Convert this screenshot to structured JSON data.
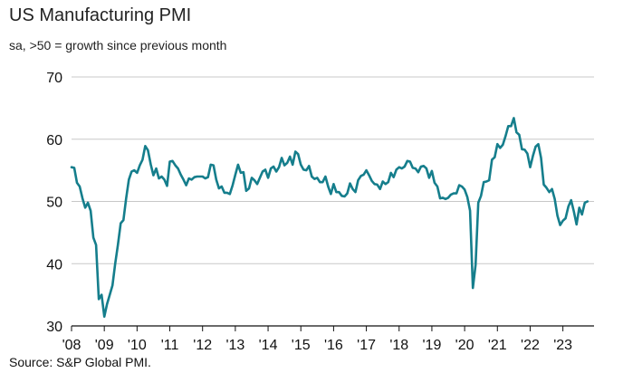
{
  "chart_data": {
    "type": "line",
    "title": "US Manufacturing PMI",
    "subtitle": "sa, >50 = growth since previous month",
    "source": "Source: S&P Global PMI.",
    "ylim": [
      30,
      70
    ],
    "yticks": [
      30,
      40,
      50,
      60,
      70
    ],
    "xlim": [
      2008,
      2023.95
    ],
    "xticks": [
      {
        "x": 2008,
        "label": "'08"
      },
      {
        "x": 2009,
        "label": "'09"
      },
      {
        "x": 2010,
        "label": "'10"
      },
      {
        "x": 2011,
        "label": "'11"
      },
      {
        "x": 2012,
        "label": "'12"
      },
      {
        "x": 2013,
        "label": "'13"
      },
      {
        "x": 2014,
        "label": "'14"
      },
      {
        "x": 2015,
        "label": "'15"
      },
      {
        "x": 2016,
        "label": "'16"
      },
      {
        "x": 2017,
        "label": "'17"
      },
      {
        "x": 2018,
        "label": "'18"
      },
      {
        "x": 2019,
        "label": "'19"
      },
      {
        "x": 2020,
        "label": "'20"
      },
      {
        "x": 2021,
        "label": "'21"
      },
      {
        "x": 2022,
        "label": "'22"
      },
      {
        "x": 2023,
        "label": "'23"
      }
    ],
    "grid": true,
    "series": [
      {
        "name": "US Manufacturing PMI",
        "color": "#157e8c",
        "start": 2008.0,
        "step": 0.0833333,
        "values": [
          55.5,
          55.4,
          53.0,
          52.4,
          50.5,
          49.0,
          49.8,
          48.5,
          44.2,
          43.0,
          34.3,
          35.0,
          31.5,
          33.5,
          35.0,
          36.5,
          40.0,
          43.0,
          46.5,
          47.0,
          50.5,
          53.5,
          54.8,
          55.0,
          54.6,
          55.8,
          56.7,
          58.9,
          58.2,
          56.0,
          54.2,
          55.3,
          53.7,
          54.0,
          53.5,
          52.5,
          56.4,
          56.5,
          55.8,
          55.3,
          54.3,
          53.5,
          52.6,
          53.7,
          53.5,
          53.9,
          54.0,
          54.0,
          54.0,
          53.7,
          53.9,
          55.9,
          55.8,
          53.5,
          52.1,
          52.4,
          51.4,
          51.4,
          51.2,
          52.6,
          54.3,
          55.9,
          54.6,
          54.7,
          51.7,
          52.1,
          53.8,
          53.4,
          52.8,
          53.8,
          54.8,
          55.1,
          53.8,
          55.3,
          55.6,
          54.8,
          55.5,
          57.0,
          55.8,
          56.2,
          57.2,
          55.9,
          58.0,
          57.6,
          55.9,
          55.1,
          55.0,
          55.7,
          54.0,
          53.6,
          53.8,
          53.1,
          53.1,
          54.0,
          52.4,
          51.2,
          52.8,
          51.5,
          51.5,
          50.9,
          50.8,
          51.3,
          52.9,
          52.0,
          51.5,
          53.4,
          54.1,
          54.3,
          55.0,
          54.2,
          53.3,
          52.8,
          52.7,
          52.0,
          53.2,
          52.8,
          53.1,
          54.6,
          53.9,
          55.1,
          55.5,
          55.3,
          55.6,
          56.5,
          56.4,
          55.4,
          55.3,
          54.7,
          55.6,
          55.7,
          55.3,
          53.8,
          54.9,
          53.0,
          52.4,
          50.5,
          50.6,
          50.4,
          50.6,
          51.1,
          51.3,
          51.3,
          52.6,
          52.4,
          51.9,
          50.7,
          48.5,
          36.1,
          39.8,
          49.8,
          50.9,
          53.1,
          53.2,
          53.4,
          56.7,
          57.1,
          59.2,
          58.6,
          59.1,
          60.5,
          62.1,
          62.1,
          63.4,
          61.1,
          60.7,
          58.4,
          58.3,
          57.7,
          55.5,
          57.3,
          58.8,
          59.2,
          57.0,
          52.7,
          52.2,
          51.5,
          52.0,
          50.4,
          47.7,
          46.2,
          46.9,
          47.3,
          49.2,
          50.2,
          48.4,
          46.3,
          49.0,
          47.9,
          49.8,
          50.0
        ]
      }
    ]
  }
}
